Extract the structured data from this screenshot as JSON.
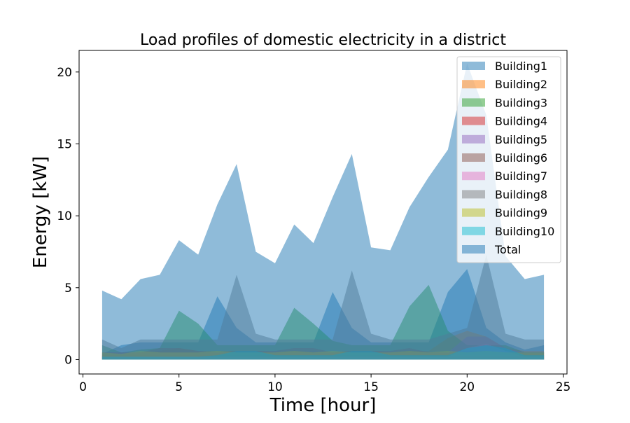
{
  "chart_data": {
    "type": "area",
    "title": "Load profiles of domestic electricity in a district",
    "xlabel": "Time [hour]",
    "ylabel": "Energy [kW]",
    "xlim": [
      -0.2,
      25.2
    ],
    "ylim": [
      -1.0,
      21.5
    ],
    "xticks": [
      0,
      5,
      10,
      15,
      20,
      25
    ],
    "yticks": [
      0,
      5,
      10,
      15,
      20
    ],
    "grid": false,
    "legend_position": "top-right",
    "x": [
      1,
      2,
      3,
      4,
      5,
      6,
      7,
      8,
      9,
      10,
      11,
      12,
      13,
      14,
      15,
      16,
      17,
      18,
      19,
      20,
      21,
      22,
      23,
      24
    ],
    "series": [
      {
        "name": "Building1",
        "color": "#1f77b4",
        "values": [
          0.4,
          1.0,
          1.2,
          1.2,
          1.2,
          1.2,
          4.4,
          2.2,
          1.2,
          1.2,
          1.2,
          1.2,
          4.7,
          2.2,
          1.2,
          1.2,
          1.2,
          1.2,
          4.7,
          6.3,
          2.2,
          1.2,
          0.7,
          1.0
        ]
      },
      {
        "name": "Building2",
        "color": "#ff7f0e",
        "values": [
          0.3,
          0.3,
          0.5,
          0.6,
          0.8,
          0.6,
          0.6,
          0.6,
          0.6,
          0.5,
          0.6,
          0.5,
          0.5,
          0.6,
          0.6,
          0.5,
          0.6,
          0.6,
          1.5,
          2.0,
          1.6,
          0.8,
          0.6,
          0.6
        ]
      },
      {
        "name": "Building3",
        "color": "#2ca02c",
        "values": [
          1.0,
          0.5,
          0.7,
          0.8,
          3.4,
          2.5,
          1.0,
          1.0,
          1.0,
          1.0,
          3.6,
          2.5,
          1.3,
          1.0,
          1.0,
          1.0,
          3.7,
          5.2,
          2.0,
          1.0,
          1.0,
          1.0,
          0.5,
          0.5
        ]
      },
      {
        "name": "Building4",
        "color": "#d62728",
        "values": [
          0.3,
          0.3,
          0.3,
          0.3,
          0.3,
          0.3,
          0.3,
          0.3,
          0.3,
          0.3,
          0.3,
          0.3,
          0.3,
          0.3,
          0.3,
          0.3,
          0.3,
          0.3,
          0.3,
          0.3,
          0.3,
          0.3,
          0.3,
          0.3
        ]
      },
      {
        "name": "Building5",
        "color": "#9467bd",
        "values": [
          0.5,
          0.5,
          0.5,
          0.5,
          0.5,
          0.5,
          0.5,
          0.5,
          0.5,
          0.5,
          0.5,
          0.5,
          0.5,
          0.5,
          0.5,
          0.5,
          0.5,
          0.5,
          0.5,
          1.6,
          1.6,
          0.8,
          0.5,
          0.5
        ]
      },
      {
        "name": "Building6",
        "color": "#8c564b",
        "values": [
          0.5,
          0.5,
          0.5,
          0.8,
          0.8,
          0.6,
          0.5,
          0.6,
          0.6,
          0.6,
          0.8,
          0.8,
          0.5,
          0.6,
          0.6,
          0.6,
          0.8,
          0.5,
          0.5,
          0.6,
          0.6,
          0.5,
          0.5,
          0.5
        ]
      },
      {
        "name": "Building7",
        "color": "#e377c2",
        "values": [
          0.2,
          0.2,
          0.2,
          0.2,
          0.2,
          0.2,
          0.2,
          0.2,
          0.2,
          0.2,
          0.2,
          0.2,
          0.2,
          0.2,
          0.2,
          0.2,
          0.2,
          0.2,
          0.2,
          0.8,
          1.1,
          0.6,
          0.2,
          0.2
        ]
      },
      {
        "name": "Building8",
        "color": "#7f7f7f",
        "values": [
          1.4,
          0.8,
          1.4,
          1.4,
          1.4,
          1.4,
          1.4,
          5.9,
          1.8,
          1.4,
          1.4,
          1.4,
          1.4,
          6.2,
          1.8,
          1.4,
          1.4,
          1.4,
          1.8,
          2.2,
          7.3,
          1.8,
          1.4,
          1.4
        ]
      },
      {
        "name": "Building9",
        "color": "#bcbd22",
        "values": [
          0.5,
          0.4,
          0.6,
          0.5,
          0.5,
          0.5,
          0.6,
          0.5,
          0.5,
          0.5,
          0.6,
          0.5,
          0.6,
          0.5,
          0.5,
          0.5,
          0.6,
          0.5,
          0.6,
          0.5,
          0.6,
          0.5,
          0.5,
          0.5
        ]
      },
      {
        "name": "Building10",
        "color": "#17becf",
        "values": [
          0.2,
          0.2,
          0.2,
          0.2,
          0.2,
          0.2,
          0.3,
          0.6,
          0.6,
          0.3,
          0.3,
          0.3,
          0.3,
          0.6,
          0.6,
          0.3,
          0.3,
          0.3,
          0.3,
          0.8,
          1.0,
          0.8,
          0.3,
          0.3
        ]
      },
      {
        "name": "Total",
        "color": "#1f77b4",
        "values": [
          4.8,
          4.2,
          5.6,
          5.9,
          8.3,
          7.3,
          10.8,
          13.6,
          7.5,
          6.7,
          9.4,
          8.1,
          11.3,
          14.3,
          7.8,
          7.6,
          10.6,
          12.7,
          14.6,
          20.6,
          17.0,
          7.2,
          5.6,
          5.9
        ]
      }
    ]
  }
}
